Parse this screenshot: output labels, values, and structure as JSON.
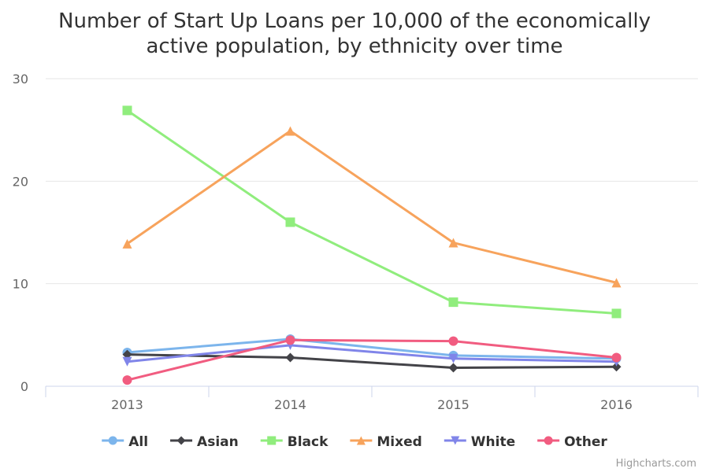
{
  "chart_data": {
    "type": "line",
    "title": {
      "line1": "Number of Start Up Loans per 10,000 of the economically",
      "line2": "active population, by ethnicity over time"
    },
    "categories": [
      "2013",
      "2014",
      "2015",
      "2016"
    ],
    "ylim": [
      0,
      30
    ],
    "yticks": [
      "0",
      "10",
      "20",
      "30"
    ],
    "grid": true,
    "legend_position": "bottom",
    "series": [
      {
        "name": "All",
        "color": "#7cb5ec",
        "marker": "circle",
        "values": [
          3.3,
          4.6,
          3.0,
          2.7
        ]
      },
      {
        "name": "Asian",
        "color": "#434348",
        "marker": "diamond",
        "values": [
          3.1,
          2.8,
          1.8,
          1.9
        ]
      },
      {
        "name": "Black",
        "color": "#90ed7d",
        "marker": "square",
        "values": [
          26.9,
          16.0,
          8.2,
          7.1
        ]
      },
      {
        "name": "Mixed",
        "color": "#f7a35c",
        "marker": "triangle",
        "values": [
          13.9,
          24.9,
          14.0,
          10.1
        ]
      },
      {
        "name": "White",
        "color": "#8085e9",
        "marker": "triangle-down",
        "values": [
          2.4,
          4.0,
          2.7,
          2.4
        ]
      },
      {
        "name": "Other",
        "color": "#f15c80",
        "marker": "circle",
        "values": [
          0.6,
          4.5,
          4.4,
          2.8
        ]
      }
    ],
    "credits": "Highcharts.com"
  }
}
